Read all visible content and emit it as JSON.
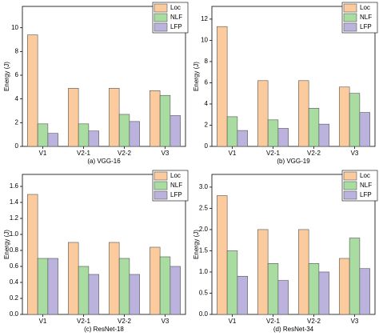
{
  "chart_data": [
    {
      "type": "bar",
      "title": "(a) VGG-16",
      "y_label": "Energy (J)",
      "categories": [
        "V1",
        "V2-1",
        "V2-2",
        "V3"
      ],
      "series": [
        {
          "name": "Loc",
          "color": "#fbcb9e",
          "values": [
            9.4,
            4.9,
            4.9,
            4.7
          ]
        },
        {
          "name": "NLF",
          "color": "#a8dca0",
          "values": [
            1.9,
            1.9,
            2.7,
            4.3
          ]
        },
        {
          "name": "LFP",
          "color": "#bbb3dd",
          "values": [
            1.1,
            1.3,
            2.1,
            2.6
          ]
        }
      ],
      "ylim": [
        0,
        11.8
      ],
      "yticks": [
        0,
        2,
        4,
        6,
        8,
        10
      ],
      "legend": "upper right"
    },
    {
      "type": "bar",
      "title": "(b) VGG-19",
      "y_label": "Energy (J)",
      "categories": [
        "V1",
        "V2-1",
        "V2-2",
        "V3"
      ],
      "series": [
        {
          "name": "Loc",
          "color": "#fbcb9e",
          "values": [
            11.3,
            6.2,
            6.2,
            5.6
          ]
        },
        {
          "name": "NLF",
          "color": "#a8dca0",
          "values": [
            2.8,
            2.5,
            3.6,
            5.0
          ]
        },
        {
          "name": "LFP",
          "color": "#bbb3dd",
          "values": [
            1.5,
            1.7,
            2.1,
            3.2
          ]
        }
      ],
      "ylim": [
        0,
        13.2
      ],
      "yticks": [
        0,
        2,
        4,
        6,
        8,
        10,
        12
      ],
      "legend": "upper right"
    },
    {
      "type": "bar",
      "title": "(c) ResNet-18",
      "y_label": "Energy (J)",
      "categories": [
        "V1",
        "V2-1",
        "V2-2",
        "V3"
      ],
      "series": [
        {
          "name": "Loc",
          "color": "#fbcb9e",
          "values": [
            1.5,
            0.9,
            0.9,
            0.84
          ]
        },
        {
          "name": "NLF",
          "color": "#a8dca0",
          "values": [
            0.7,
            0.6,
            0.7,
            0.72
          ]
        },
        {
          "name": "LFP",
          "color": "#bbb3dd",
          "values": [
            0.7,
            0.5,
            0.5,
            0.6
          ]
        }
      ],
      "ylim": [
        0,
        1.75
      ],
      "yticks": [
        {
          "value": 0,
          "label": "0.0"
        },
        0.2,
        0.4,
        0.6,
        0.8,
        {
          "value": 1,
          "label": "1.0"
        },
        1.2,
        1.4,
        1.6
      ],
      "legend": "upper right"
    },
    {
      "type": "bar",
      "title": "(d) ResNet-34",
      "y_label": "Energy (J)",
      "categories": [
        "V1",
        "V2-1",
        "V2-2",
        "V3"
      ],
      "series": [
        {
          "name": "Loc",
          "color": "#fbcb9e",
          "values": [
            2.8,
            2.0,
            2.0,
            1.32
          ]
        },
        {
          "name": "NLF",
          "color": "#a8dca0",
          "values": [
            1.5,
            1.2,
            1.2,
            1.8
          ]
        },
        {
          "name": "LFP",
          "color": "#bbb3dd",
          "values": [
            0.9,
            0.8,
            1.0,
            1.08
          ]
        }
      ],
      "ylim": [
        0,
        3.3
      ],
      "yticks": [
        {
          "value": 0,
          "label": "0.0"
        },
        0.5,
        {
          "value": 1,
          "label": "1.0"
        },
        1.5,
        {
          "value": 2,
          "label": "2.0"
        },
        2.5,
        {
          "value": 3,
          "label": "3.0"
        }
      ],
      "legend": "upper right"
    }
  ]
}
